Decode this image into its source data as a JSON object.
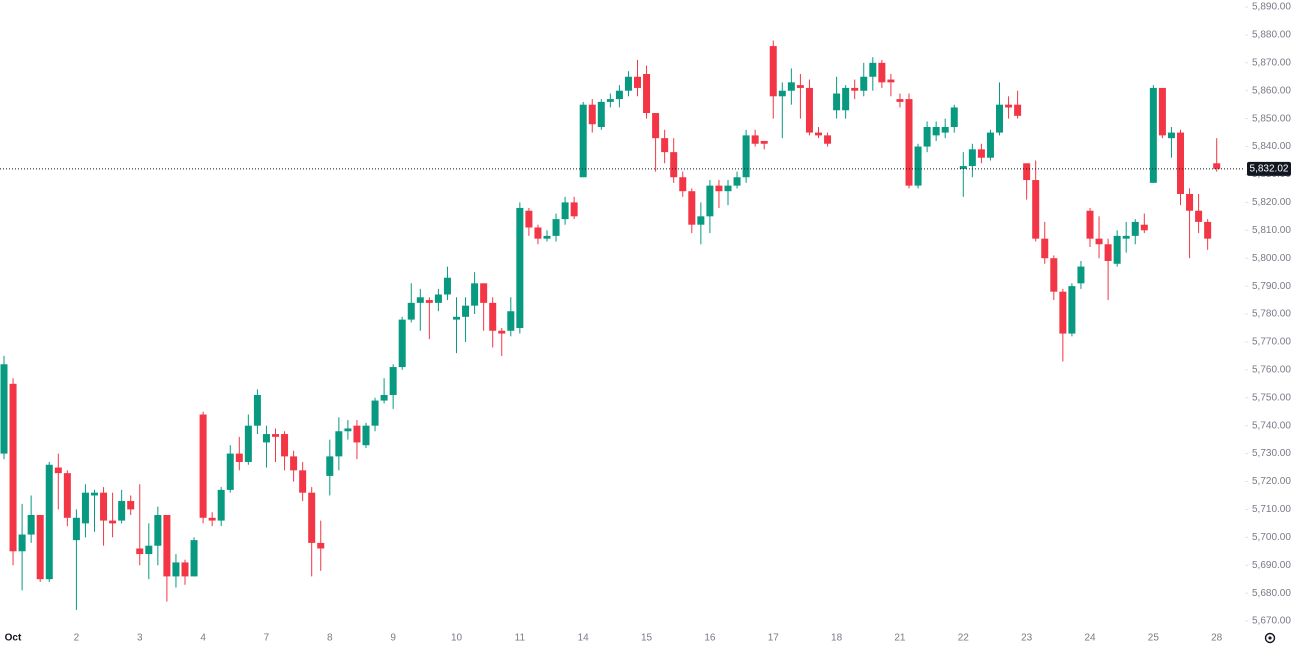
{
  "chart_data": {
    "type": "candlestick",
    "up_color": "#089981",
    "down_color": "#f23645",
    "x": [
      "Oct",
      null,
      null,
      null,
      null,
      null,
      null,
      null,
      "2",
      null,
      null,
      null,
      null,
      null,
      null,
      "3",
      null,
      null,
      null,
      null,
      null,
      null,
      "4",
      null,
      null,
      null,
      null,
      null,
      null,
      "7",
      null,
      null,
      null,
      null,
      null,
      null,
      "8",
      null,
      null,
      null,
      null,
      null,
      null,
      "9",
      null,
      null,
      null,
      null,
      null,
      null,
      "10",
      null,
      null,
      null,
      null,
      null,
      null,
      "11",
      null,
      null,
      null,
      null,
      null,
      null,
      "14",
      null,
      null,
      null,
      null,
      null,
      null,
      "15",
      null,
      null,
      null,
      null,
      null,
      null,
      "16",
      null,
      null,
      null,
      null,
      null,
      null,
      "17",
      null,
      null,
      null,
      null,
      null,
      null,
      "18",
      null,
      null,
      null,
      null,
      null,
      null,
      "21",
      null,
      null,
      null,
      null,
      null,
      null,
      "22",
      null,
      null,
      null,
      null,
      null,
      null,
      "23",
      null,
      null,
      null,
      null,
      null,
      null,
      "24",
      null,
      null,
      null,
      null,
      null,
      null,
      "25",
      null,
      null,
      null,
      null,
      null,
      null,
      "28"
    ],
    "open": [
      5730,
      5755,
      5695,
      5701,
      5708,
      5685,
      5725,
      5723,
      5699,
      5705,
      5715,
      5716,
      5706,
      5706,
      5713,
      5696,
      5694,
      5697,
      5708,
      5686,
      5691,
      5686,
      5744,
      5707,
      5706,
      5717,
      5730,
      5727,
      5740,
      5734,
      5737,
      5737,
      5729,
      5724,
      5716,
      5698,
      5722,
      5729,
      5738,
      5740,
      5733,
      5740,
      5749,
      5751,
      5761,
      5778,
      5784,
      5785,
      5784,
      5787,
      5778,
      5779,
      5783,
      5791,
      5784,
      5774,
      5774,
      5775,
      5817,
      5811,
      5807,
      5808,
      5814,
      5820,
      5829,
      5855,
      5847,
      5856,
      5857,
      5860,
      5865,
      5866,
      5852,
      5843,
      5838,
      5829,
      5824,
      5812,
      5815,
      5826,
      5824,
      5826,
      5829,
      5844,
      5842,
      5876,
      5858,
      5860,
      5862,
      5861,
      5845,
      5844,
      5853,
      5853,
      5861,
      5860,
      5865,
      5870,
      5864,
      5857,
      5857,
      5826,
      5840,
      5844,
      5845,
      5847,
      5832,
      5833,
      5839,
      5836,
      5845,
      5855,
      5855,
      5834,
      5828,
      5807,
      5800,
      5788,
      5773,
      5791,
      5817,
      5807,
      5805,
      5798,
      5807,
      5808,
      5812,
      5827,
      5861,
      5843,
      5845,
      5823,
      5817,
      5813,
      5834
    ],
    "high": [
      5765,
      5757,
      5712,
      5715,
      5708,
      5727,
      5730,
      5724,
      5710,
      5719,
      5717,
      5718,
      5716,
      5717,
      5715,
      5719,
      5705,
      5711,
      5708,
      5694,
      5692,
      5700,
      5745,
      5709,
      5718,
      5733,
      5736,
      5744,
      5753,
      5740,
      5739,
      5738,
      5731,
      5727,
      5718,
      5706,
      5735,
      5743,
      5742,
      5742,
      5741,
      5750,
      5757,
      5762,
      5779,
      5791,
      5789,
      5786,
      5789,
      5797,
      5786,
      5786,
      5795,
      5791,
      5786,
      5775,
      5786,
      5820,
      5818,
      5812,
      5810,
      5816,
      5822,
      5822,
      5856,
      5857,
      5857,
      5859,
      5862,
      5867,
      5871,
      5869,
      5852,
      5846,
      5843,
      5831,
      5825,
      5820,
      5828,
      5828,
      5828,
      5831,
      5846,
      5846,
      5842,
      5878,
      5863,
      5868,
      5866,
      5864,
      5847,
      5845,
      5865,
      5862,
      5864,
      5870,
      5872,
      5871,
      5866,
      5859,
      5859,
      5841,
      5849,
      5849,
      5850,
      5855,
      5838,
      5841,
      5841,
      5846,
      5863,
      5858,
      5860,
      5834,
      5835,
      5813,
      5801,
      5789,
      5791,
      5799,
      5818,
      5815,
      5807,
      5810,
      5813,
      5814,
      5816,
      5862,
      5861,
      5847,
      5846,
      5825,
      5823,
      5814,
      5843
    ],
    "low": [
      5728,
      5690,
      5681,
      5698,
      5684,
      5684,
      5710,
      5704,
      5674,
      5700,
      5702,
      5697,
      5700,
      5705,
      5708,
      5690,
      5685,
      5690,
      5677,
      5682,
      5683,
      5686,
      5705,
      5704,
      5704,
      5716,
      5724,
      5726,
      5737,
      5725,
      5727,
      5724,
      5720,
      5713,
      5686,
      5688,
      5715,
      5724,
      5735,
      5728,
      5732,
      5738,
      5748,
      5746,
      5760,
      5777,
      5774,
      5771,
      5781,
      5785,
      5766,
      5770,
      5780,
      5774,
      5768,
      5765,
      5772,
      5773,
      5808,
      5805,
      5806,
      5806,
      5812,
      5814,
      5829,
      5845,
      5846,
      5854,
      5854,
      5858,
      5858,
      5850,
      5831,
      5834,
      5827,
      5822,
      5809,
      5805,
      5809,
      5818,
      5819,
      5825,
      5827,
      5840,
      5839,
      5850,
      5843,
      5855,
      5850,
      5844,
      5843,
      5840,
      5850,
      5850,
      5857,
      5858,
      5860,
      5861,
      5858,
      5854,
      5825,
      5825,
      5838,
      5842,
      5843,
      5845,
      5822,
      5829,
      5834,
      5835,
      5844,
      5850,
      5850,
      5821,
      5806,
      5798,
      5785,
      5763,
      5772,
      5789,
      5804,
      5800,
      5785,
      5797,
      5802,
      5805,
      5809,
      5827,
      5843,
      5836,
      5819,
      5800,
      5809,
      5803,
      5831
    ],
    "close": [
      5762,
      5695,
      5701,
      5708,
      5685,
      5726,
      5723,
      5707,
      5707,
      5716,
      5716,
      5706,
      5705,
      5713,
      5710,
      5694,
      5697,
      5708,
      5686,
      5691,
      5686,
      5699,
      5707,
      5706,
      5717,
      5730,
      5727,
      5740,
      5751,
      5737,
      5736,
      5729,
      5724,
      5716,
      5698,
      5696,
      5729,
      5738,
      5739,
      5734,
      5740,
      5749,
      5751,
      5761,
      5778,
      5784,
      5786,
      5784,
      5787,
      5793,
      5779,
      5783,
      5791,
      5784,
      5774,
      5773,
      5781,
      5818,
      5811,
      5807,
      5808,
      5814,
      5820,
      5815,
      5855,
      5848,
      5856,
      5857,
      5860,
      5865,
      5861,
      5852,
      5843,
      5838,
      5829,
      5824,
      5812,
      5815,
      5826,
      5824,
      5826,
      5829,
      5844,
      5841,
      5841,
      5858,
      5860,
      5863,
      5861,
      5845,
      5844,
      5841,
      5859,
      5861,
      5860,
      5865,
      5870,
      5863,
      5863,
      5856,
      5826,
      5840,
      5847,
      5847,
      5847,
      5854,
      5833,
      5839,
      5836,
      5845,
      5855,
      5854,
      5851,
      5828,
      5807,
      5800,
      5788,
      5773,
      5790,
      5797,
      5807,
      5805,
      5799,
      5808,
      5808,
      5813,
      5810,
      5861,
      5844,
      5845,
      5823,
      5817,
      5813,
      5807,
      5832.02
    ],
    "last_price": {
      "value": 5832.02,
      "label": "5,832.02"
    },
    "ylim": [
      5666.8,
      5892.5
    ],
    "yticks": [
      {
        "value": 5670,
        "label": "5,670.00"
      },
      {
        "value": 5680,
        "label": "5,680.00"
      },
      {
        "value": 5690,
        "label": "5,690.00"
      },
      {
        "value": 5700,
        "label": "5,700.00"
      },
      {
        "value": 5710,
        "label": "5,710.00"
      },
      {
        "value": 5720,
        "label": "5,720.00"
      },
      {
        "value": 5730,
        "label": "5,730.00"
      },
      {
        "value": 5740,
        "label": "5,740.00"
      },
      {
        "value": 5750,
        "label": "5,750.00"
      },
      {
        "value": 5760,
        "label": "5,760.00"
      },
      {
        "value": 5770,
        "label": "5,770.00"
      },
      {
        "value": 5780,
        "label": "5,780.00"
      },
      {
        "value": 5790,
        "label": "5,790.00"
      },
      {
        "value": 5800,
        "label": "5,800.00"
      },
      {
        "value": 5810,
        "label": "5,810.00"
      },
      {
        "value": 5820,
        "label": "5,820.00"
      },
      {
        "value": 5830,
        "label": "5,830.00"
      },
      {
        "value": 5840,
        "label": "5,840.00"
      },
      {
        "value": 5850,
        "label": "5,850.00"
      },
      {
        "value": 5860,
        "label": "5,860.00"
      },
      {
        "value": 5870,
        "label": "5,870.00"
      },
      {
        "value": 5880,
        "label": "5,880.00"
      },
      {
        "value": 5890,
        "label": "5,890.00"
      }
    ],
    "grid": false
  }
}
